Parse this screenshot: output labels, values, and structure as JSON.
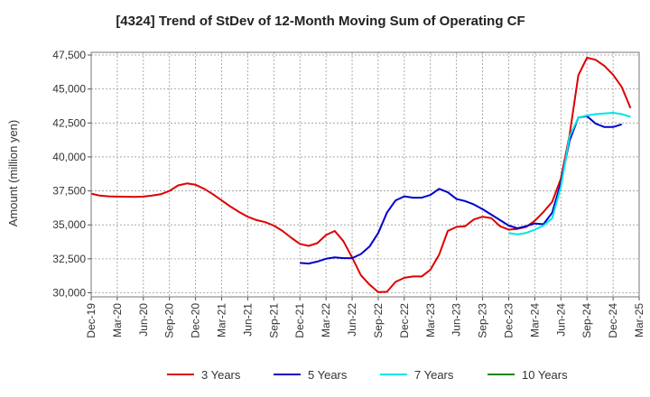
{
  "chart_data": {
    "type": "line",
    "title": "[4324]  Trend of StDev of 12-Month Moving Sum of Operating CF",
    "xlabel": "",
    "ylabel": "Amount (million yen)",
    "ylim": [
      29700,
      47700
    ],
    "yticks": [
      30000,
      32500,
      35000,
      37500,
      40000,
      42500,
      45000,
      47500
    ],
    "ytick_labels": [
      "30,000",
      "32,500",
      "35,000",
      "37,500",
      "40,000",
      "42,500",
      "45,000",
      "47,500"
    ],
    "xtick_labels": [
      "Dec-19",
      "Mar-20",
      "Jun-20",
      "Sep-20",
      "Dec-20",
      "Mar-21",
      "Jun-21",
      "Sep-21",
      "Dec-21",
      "Mar-22",
      "Jun-22",
      "Sep-22",
      "Dec-22",
      "Mar-23",
      "Jun-23",
      "Sep-23",
      "Dec-23",
      "Mar-24",
      "Jun-24",
      "Sep-24",
      "Dec-24",
      "Mar-25"
    ],
    "grid": true,
    "legend_position": "bottom",
    "series": [
      {
        "name": "3 Years",
        "color": "#dd0000",
        "start_month": 0,
        "values": [
          37300,
          37150,
          37100,
          37080,
          37070,
          37060,
          37080,
          37150,
          37250,
          37500,
          37900,
          38050,
          37950,
          37650,
          37250,
          36800,
          36350,
          35950,
          35600,
          35350,
          35200,
          34950,
          34550,
          34050,
          33600,
          33450,
          33650,
          34250,
          34550,
          33800,
          32600,
          31300,
          30600,
          30050,
          30070,
          30800,
          31100,
          31200,
          31200,
          31700,
          32800,
          34550,
          34850,
          34900,
          35400,
          35600,
          35500,
          34900,
          34650,
          34700,
          34850,
          35300,
          35950,
          36700,
          38400,
          41600,
          46000,
          47300,
          47150,
          46700,
          46050,
          45150,
          43600
        ]
      },
      {
        "name": "5 Years",
        "color": "#0000cc",
        "start_month": 24,
        "values": [
          32200,
          32150,
          32300,
          32500,
          32600,
          32550,
          32550,
          32850,
          33400,
          34400,
          35900,
          36800,
          37100,
          37000,
          37000,
          37200,
          37650,
          37400,
          36900,
          36750,
          36500,
          36150,
          35750,
          35350,
          34950,
          34750,
          34900,
          35100,
          35050,
          35900,
          38100,
          41200,
          42900,
          43000,
          42450,
          42200,
          42200,
          42400
        ]
      },
      {
        "name": "7 Years",
        "color": "#00e5e5",
        "start_month": 48,
        "values": [
          34400,
          34300,
          34400,
          34650,
          34950,
          35500,
          37800,
          41500,
          42900,
          43050,
          43150,
          43200,
          43250,
          43150,
          42950
        ]
      },
      {
        "name": "10 Years",
        "color": "#118811",
        "start_month": 0,
        "values": []
      }
    ]
  }
}
